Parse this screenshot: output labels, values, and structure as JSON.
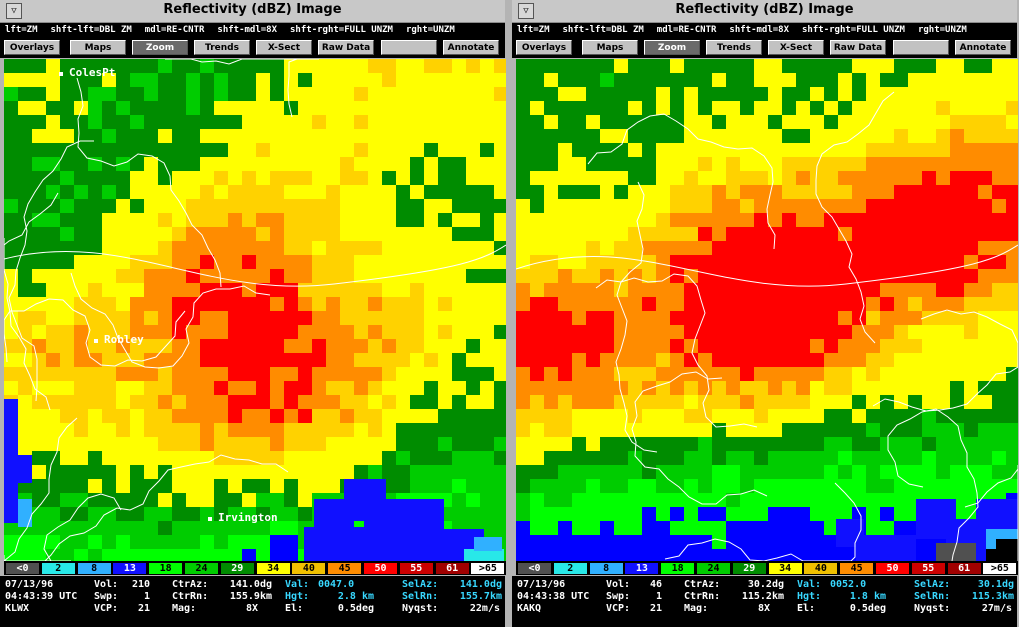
{
  "hints": [
    "lft=ZM",
    "shft-lft=DBL ZM",
    "mdl=RE-CNTR",
    "shft-mdl=8X",
    "shft-rght=FULL UNZM",
    "rght=UNZM"
  ],
  "buttons": [
    "Overlays",
    "Maps",
    "Zoom",
    "Trends",
    "X-Sect",
    "Raw Data",
    "",
    "Annotate"
  ],
  "legend": [
    {
      "label": "<0",
      "bg": "#505050",
      "fg": "#ffffff"
    },
    {
      "label": "2",
      "bg": "#28e8e8",
      "fg": "#000000"
    },
    {
      "label": "8",
      "bg": "#30b0ff",
      "fg": "#000000"
    },
    {
      "label": "13",
      "bg": "#1010ff",
      "fg": "#ffffff"
    },
    {
      "label": "18",
      "bg": "#00ff00",
      "fg": "#000000"
    },
    {
      "label": "24",
      "bg": "#00cc00",
      "fg": "#000000"
    },
    {
      "label": "29",
      "bg": "#008c00",
      "fg": "#ffffff"
    },
    {
      "label": "34",
      "bg": "#ffff00",
      "fg": "#000000"
    },
    {
      "label": "40",
      "bg": "#f0c000",
      "fg": "#000000"
    },
    {
      "label": "45",
      "bg": "#ff8c00",
      "fg": "#000000"
    },
    {
      "label": "50",
      "bg": "#ff0000",
      "fg": "#ffffff"
    },
    {
      "label": "55",
      "bg": "#cc0000",
      "fg": "#ffffff"
    },
    {
      "label": "61",
      "bg": "#a00000",
      "fg": "#ffffff"
    },
    {
      "label": ">65",
      "bg": "#ffffff",
      "fg": "#000000"
    }
  ],
  "windows": [
    {
      "title": "Reflectivity (dBZ) Image",
      "cities": [
        "ColesPt",
        "Robley",
        "Irvington"
      ],
      "info": {
        "date": "07/13/96",
        "time": "04:43:39 UTC",
        "radar": "KLWX",
        "vol_label": "Vol:",
        "vol": "210",
        "swp_label": "Swp:",
        "swp": "1",
        "vcp_label": "VCP:",
        "vcp": "21",
        "ctraz_label": "CtrAz:",
        "ctraz": "141.0dg",
        "ctrrn_label": "CtrRn:",
        "ctrrn": "155.9km",
        "mag_label": "Mag:",
        "mag": "8X",
        "val_label": "Val:",
        "val": "0047.0",
        "hgt_label": "Hgt:",
        "hgt": "2.8 km",
        "el_label": "El:",
        "el": "0.5deg",
        "selaz_label": "SelAz:",
        "selaz": "141.0dg",
        "selrn_label": "SelRn:",
        "selrn": "155.7km",
        "nyq_label": "Nyqst:",
        "nyq": "22m/s"
      }
    },
    {
      "title": "Reflectivity (dBZ) Image",
      "cities": [],
      "info": {
        "date": "07/13/96",
        "time": "04:43:38 UTC",
        "radar": "KAKQ",
        "vol_label": "Vol:",
        "vol": "46",
        "swp_label": "Swp:",
        "swp": "1",
        "vcp_label": "VCP:",
        "vcp": "21",
        "ctraz_label": "CtrAz:",
        "ctraz": "30.2dg",
        "ctrrn_label": "CtrRn:",
        "ctrrn": "115.2km",
        "mag_label": "Mag:",
        "mag": "8X",
        "val_label": "Val:",
        "val": "0052.0",
        "hgt_label": "Hgt:",
        "hgt": "1.8 km",
        "el_label": "El:",
        "el": "0.5deg",
        "selaz_label": "SelAz:",
        "selaz": "30.1dg",
        "selrn_label": "SelRn:",
        "selrn": "115.3km",
        "nyq_label": "Nyqst:",
        "nyq": "27m/s"
      }
    }
  ]
}
